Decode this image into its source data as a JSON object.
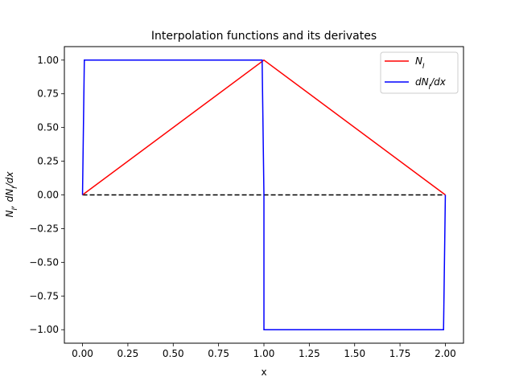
{
  "chart_data": {
    "type": "line",
    "title": "Interpolation functions and its derivates",
    "xlabel": "x",
    "ylabel": "N_I, dN_I/dx",
    "xlim": [
      -0.1,
      2.1
    ],
    "ylim": [
      -1.1,
      1.1
    ],
    "xticks": [
      0.0,
      0.25,
      0.5,
      0.75,
      1.0,
      1.25,
      1.5,
      1.75,
      2.0
    ],
    "xtick_labels": [
      "0.00",
      "0.25",
      "0.50",
      "0.75",
      "1.00",
      "1.25",
      "1.50",
      "1.75",
      "2.00"
    ],
    "yticks": [
      -1.0,
      -0.75,
      -0.5,
      -0.25,
      0.0,
      0.25,
      0.5,
      0.75,
      1.0
    ],
    "ytick_labels": [
      "−1.00",
      "−0.75",
      "−0.50",
      "−0.25",
      "0.00",
      "0.25",
      "0.50",
      "0.75",
      "1.00"
    ],
    "grid": false,
    "legend_position": "top-right",
    "series": [
      {
        "name": "N_I",
        "color": "#ff0000",
        "style": "solid",
        "x": [
          0.0,
          1.0,
          2.0
        ],
        "y": [
          0.0,
          1.0,
          0.0
        ]
      },
      {
        "name": "dN_I/dx",
        "color": "#0000ff",
        "style": "solid",
        "x": [
          0.0,
          0.01,
          0.99,
          1.0,
          1.0,
          1.99,
          2.0
        ],
        "y": [
          0.0,
          1.0,
          1.0,
          0.0,
          -1.0,
          -1.0,
          0.0
        ]
      },
      {
        "color": "#000000",
        "style": "dashed",
        "x": [
          0.0,
          2.0
        ],
        "y": [
          0.0,
          0.0
        ]
      }
    ]
  }
}
